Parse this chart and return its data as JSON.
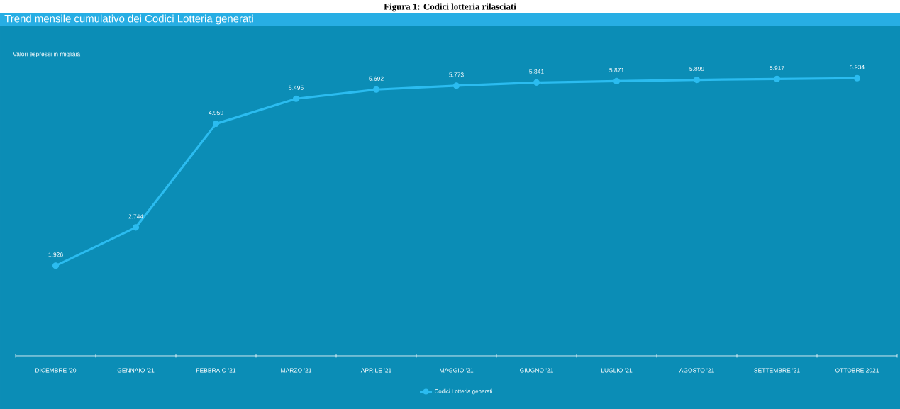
{
  "chart_data": {
    "type": "line",
    "title": "Figura 1: Codici lotteria rilasciati",
    "subtitle": "Trend mensile cumulativo dei Codici Lotteria generati",
    "annotations": [
      "Valori espressi in migliaia"
    ],
    "categories": [
      "DICEMBRE '20",
      "GENNAIO '21",
      "FEBBRAIO '21",
      "MARZO '21",
      "APRILE '21",
      "MAGGIO '21",
      "GIUGNO '21",
      "LUGLIO '21",
      "AGOSTO '21",
      "SETTEMBRE '21",
      "OTTOBRE 2021"
    ],
    "series": [
      {
        "name": "Codici Lotteria generati",
        "color": "#2bbcf0",
        "values": [
          1926,
          2744,
          4959,
          5495,
          5692,
          5773,
          5841,
          5871,
          5899,
          5917,
          5934
        ],
        "value_labels": [
          "1.926",
          "2.744",
          "4.959",
          "5.495",
          "5.692",
          "5.773",
          "5.841",
          "5.871",
          "5.899",
          "5.917",
          "5.934"
        ]
      }
    ],
    "legend": "bottom",
    "marker": "circle",
    "line_style": "solid"
  }
}
